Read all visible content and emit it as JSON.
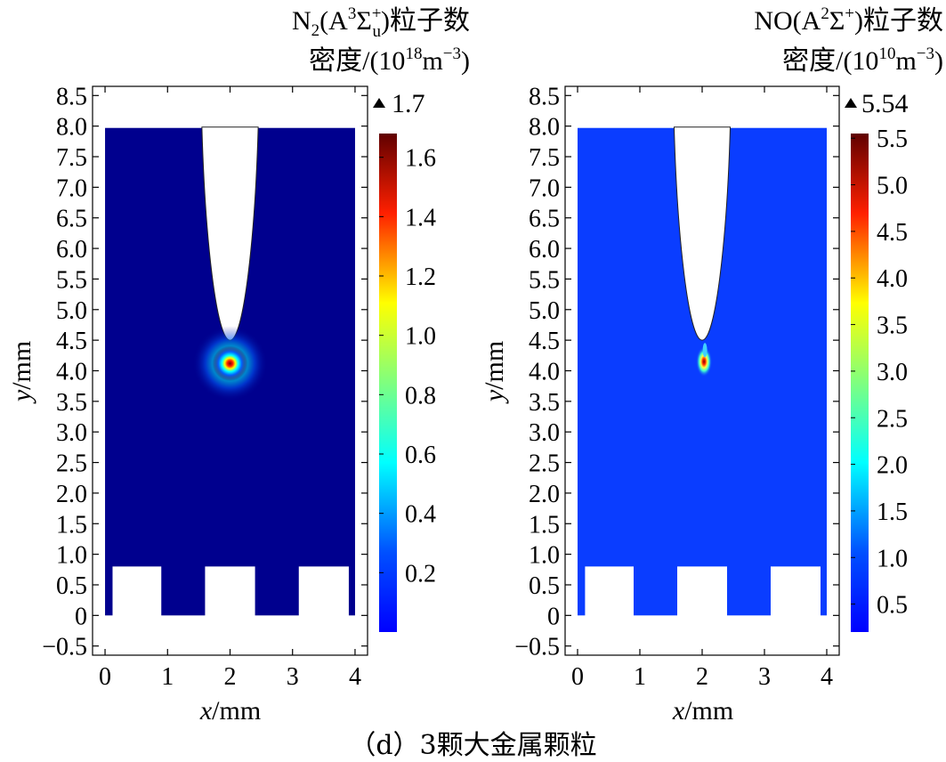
{
  "caption": "（d）3颗大金属颗粒",
  "colors": {
    "background": "#ffffff",
    "frame": "#000000",
    "colormap_jet": [
      "#00007f",
      "#0000ff",
      "#007fff",
      "#00ffff",
      "#7fff7f",
      "#ffff00",
      "#ff7f00",
      "#ff0000",
      "#7f0000"
    ]
  },
  "chart_data": [
    {
      "type": "heatmap",
      "title_line1": {
        "main": "N",
        "sub": "2",
        "open": "(A",
        "sup": "3",
        "sigma": "Σ",
        "sigma_sup": "+",
        "sigma_sub": "u",
        "close": ")粒子数"
      },
      "title_line2": {
        "pre": "密度/(10",
        "sup": "18",
        "mid": "m",
        "unit_sup": "−3",
        "post": ")"
      },
      "xlabel": {
        "var": "x",
        "unit": "/mm"
      },
      "ylabel": {
        "var": "y",
        "unit": "/mm"
      },
      "xlim": [
        -0.2,
        4.2
      ],
      "ylim": [
        -0.65,
        8.65
      ],
      "xticks": [
        0,
        1,
        2,
        3,
        4
      ],
      "yticks": [
        8.5,
        8.0,
        7.5,
        7.0,
        6.5,
        6.0,
        5.5,
        5.0,
        4.5,
        4.0,
        3.5,
        3.0,
        2.5,
        2.0,
        1.5,
        1.0,
        0.5,
        0,
        -0.5
      ],
      "ytick_labels": [
        "8.5",
        "8.0",
        "7.5",
        "7.0",
        "6.5",
        "6.0",
        "5.5",
        "5.0",
        "4.5",
        "4.0",
        "3.5",
        "3.0",
        "2.5",
        "2.0",
        "1.5",
        "1.0",
        "0.5",
        "0",
        "−0.5"
      ],
      "field_background_color": "#00008e",
      "hotspot": {
        "x": 2.0,
        "y": 4.12,
        "value": 1.7
      },
      "colorbar": {
        "max_marker": "1.7",
        "range": [
          0,
          1.68
        ],
        "ticks": [
          1.6,
          1.4,
          1.2,
          1.0,
          0.8,
          0.6,
          0.4,
          0.2
        ],
        "tick_labels": [
          "1.6",
          "1.4",
          "1.2",
          "1.0",
          "0.8",
          "0.6",
          "0.4",
          "0.2"
        ]
      },
      "electrode_tip_y": 4.5,
      "particles": [
        [
          0.12,
          0.9
        ],
        [
          1.6,
          2.4
        ],
        [
          3.1,
          3.9
        ]
      ]
    },
    {
      "type": "heatmap",
      "title_line1": {
        "main": "NO(A",
        "sup": "2",
        "sigma": "Σ",
        "sigma_sup": "+",
        "close": ")粒子数"
      },
      "title_line2": {
        "pre": "密度/(10",
        "sup": "10",
        "mid": "m",
        "unit_sup": "−3",
        "post": ")"
      },
      "xlabel": {
        "var": "x",
        "unit": "/mm"
      },
      "ylabel": {
        "var": "y",
        "unit": "/mm"
      },
      "xlim": [
        -0.2,
        4.2
      ],
      "ylim": [
        -0.65,
        8.65
      ],
      "xticks": [
        0,
        1,
        2,
        3,
        4
      ],
      "yticks": [
        8.5,
        8.0,
        7.5,
        7.0,
        6.5,
        6.0,
        5.5,
        5.0,
        4.5,
        4.0,
        3.5,
        3.0,
        2.5,
        2.0,
        1.5,
        1.0,
        0.5,
        0,
        -0.5
      ],
      "ytick_labels": [
        "8.5",
        "8.0",
        "7.5",
        "7.0",
        "6.5",
        "6.0",
        "5.5",
        "5.0",
        "4.5",
        "4.0",
        "3.5",
        "3.0",
        "2.5",
        "2.0",
        "1.5",
        "1.0",
        "0.5",
        "0",
        "−0.5"
      ],
      "field_background_color": "#0a3dff",
      "hotspot": {
        "x": 2.03,
        "y": 4.12,
        "value": 5.54
      },
      "colorbar": {
        "max_marker": "5.54",
        "range": [
          0.2,
          5.55
        ],
        "ticks": [
          5.5,
          5.0,
          4.5,
          4.0,
          3.5,
          3.0,
          2.5,
          2.0,
          1.5,
          1.0,
          0.5
        ],
        "tick_labels": [
          "5.5",
          "5.0",
          "4.5",
          "4.0",
          "3.5",
          "3.0",
          "2.5",
          "2.0",
          "1.5",
          "1.0",
          "0.5"
        ]
      },
      "electrode_tip_y": 4.5,
      "particles": [
        [
          0.12,
          0.9
        ],
        [
          1.6,
          2.4
        ],
        [
          3.1,
          3.9
        ]
      ]
    }
  ]
}
